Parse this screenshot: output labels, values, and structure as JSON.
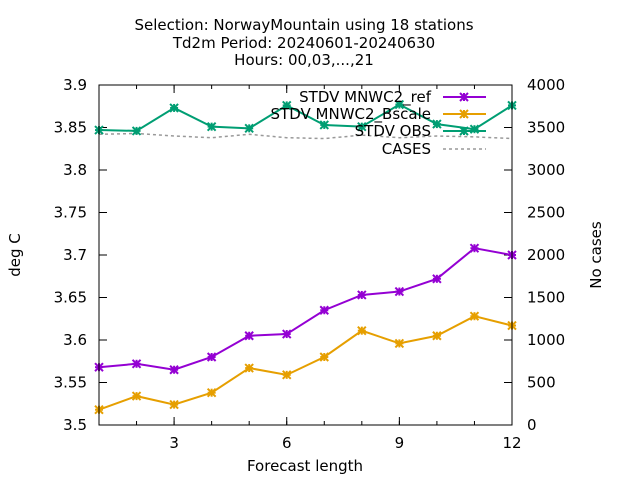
{
  "chart_data": {
    "type": "line",
    "title_lines": [
      "Selection: NorwayMountain using    18 stations",
      "Td2m   Period: 20240601-20240630",
      "Hours: 00,03,...,21"
    ],
    "xlabel": "Forecast length",
    "ylabel": "deg C",
    "y2label": "No cases",
    "xlim": [
      1,
      12
    ],
    "ylim": [
      3.5,
      3.9
    ],
    "y2lim": [
      0,
      4000
    ],
    "xticks": [
      "3",
      "6",
      "9",
      "12"
    ],
    "yticks": [
      "3.5",
      "3.55",
      "3.6",
      "3.65",
      "3.7",
      "3.75",
      "3.8",
      "3.85",
      "3.9"
    ],
    "y2ticks": [
      "0",
      "500",
      "1000",
      "1500",
      "2000",
      "2500",
      "3000",
      "3500",
      "4000"
    ],
    "x": [
      1,
      2,
      3,
      4,
      5,
      6,
      7,
      8,
      9,
      10,
      11,
      12
    ],
    "legend_position": "top-right",
    "series": [
      {
        "name": "STDV MNWC2_ref",
        "color": "#9400d3",
        "axis": "y1",
        "marker": "x",
        "values": [
          3.568,
          3.572,
          3.565,
          3.58,
          3.605,
          3.607,
          3.635,
          3.653,
          3.657,
          3.672,
          3.708,
          3.7
        ]
      },
      {
        "name": "STDV MNWC2_Bscale",
        "color": "#e69f00",
        "axis": "y1",
        "marker": "x",
        "values": [
          3.518,
          3.534,
          3.524,
          3.538,
          3.567,
          3.559,
          3.58,
          3.611,
          3.596,
          3.605,
          3.628,
          3.617
        ]
      },
      {
        "name": "STDV OBS",
        "color": "#009e73",
        "axis": "y1",
        "marker": "x",
        "values": [
          3.847,
          3.846,
          3.873,
          3.851,
          3.849,
          3.876,
          3.853,
          3.851,
          3.877,
          3.854,
          3.848,
          3.876
        ]
      },
      {
        "name": "CASES",
        "color": "#999999",
        "axis": "y2",
        "dashed": true,
        "values": [
          3420,
          3430,
          3400,
          3380,
          3420,
          3380,
          3370,
          3410,
          3380,
          3400,
          3390,
          3370
        ]
      }
    ]
  }
}
